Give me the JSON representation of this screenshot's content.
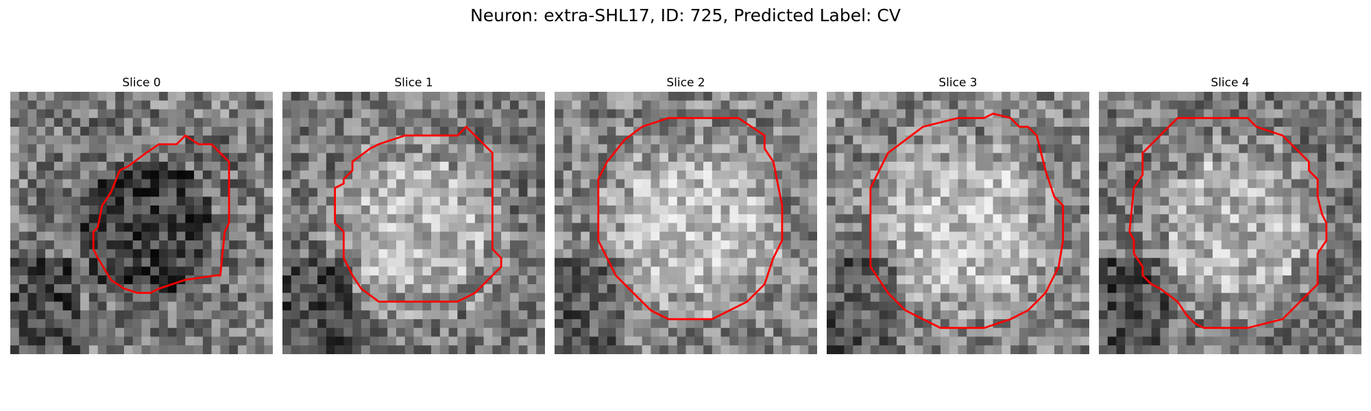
{
  "figure": {
    "title": "Neuron: extra-SHL17, ID: 725, Predicted Label: CV"
  },
  "colors": {
    "contour": "#ff0000"
  },
  "panels": [
    {
      "title": "Slice 0",
      "brightness": 0.4,
      "center": "dark"
    },
    {
      "title": "Slice 1",
      "brightness": 0.55,
      "center": "light"
    },
    {
      "title": "Slice 2",
      "brightness": 0.6,
      "center": "light"
    },
    {
      "title": "Slice 3",
      "brightness": 0.6,
      "center": "light"
    },
    {
      "title": "Slice 4",
      "brightness": 0.55,
      "center": "light"
    }
  ]
}
